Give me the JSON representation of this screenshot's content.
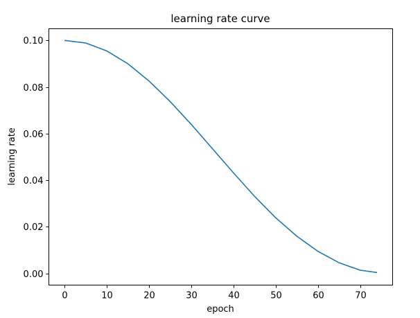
{
  "chart_data": {
    "type": "line",
    "title": "learning rate curve",
    "xlabel": "epoch",
    "ylabel": "learning rate",
    "xlim": [
      -3.7,
      77.7
    ],
    "ylim": [
      -0.005,
      0.105
    ],
    "xticks": [
      0,
      10,
      20,
      30,
      40,
      50,
      60,
      70
    ],
    "xtick_labels": [
      "0",
      "10",
      "20",
      "30",
      "40",
      "50",
      "60",
      "70"
    ],
    "yticks": [
      0.0,
      0.02,
      0.04,
      0.06,
      0.08,
      0.1
    ],
    "ytick_labels": [
      "0.00",
      "0.02",
      "0.04",
      "0.06",
      "0.08",
      "0.10"
    ],
    "grid": false,
    "legend": null,
    "series": [
      {
        "name": "learning rate",
        "color": "#1f77b4",
        "description": "cosine annealing from 0.1 to ~0 over 75 epochs",
        "x": [
          0,
          5,
          10,
          15,
          20,
          25,
          30,
          35,
          40,
          45,
          50,
          55,
          60,
          65,
          70,
          74
        ],
        "values": [
          0.1,
          0.0989,
          0.0955,
          0.09,
          0.0826,
          0.0738,
          0.064,
          0.0536,
          0.0432,
          0.0331,
          0.0239,
          0.016,
          0.0095,
          0.0046,
          0.0014,
          0.0004
        ]
      }
    ]
  }
}
